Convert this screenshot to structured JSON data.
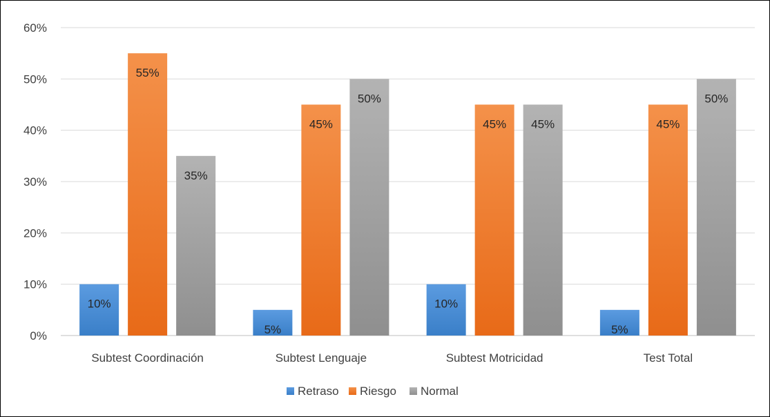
{
  "chart_data": {
    "type": "bar",
    "categories": [
      "Subtest Coordinación",
      "Subtest Lenguaje",
      "Subtest Motricidad",
      "Test Total"
    ],
    "series": [
      {
        "name": "Retraso",
        "values": [
          10,
          5,
          10,
          5
        ],
        "labels": [
          "10%",
          "5%",
          "10%",
          "5%"
        ],
        "color": "#4a8fd6"
      },
      {
        "name": "Riesgo",
        "values": [
          55,
          45,
          45,
          45
        ],
        "labels": [
          "55%",
          "45%",
          "45%",
          "45%"
        ],
        "color": "#f07a2a"
      },
      {
        "name": "Normal",
        "values": [
          35,
          50,
          45,
          50
        ],
        "labels": [
          "35%",
          "50%",
          "45%",
          "50%"
        ],
        "color": "#a3a3a3"
      }
    ],
    "ylim": [
      0,
      60
    ],
    "yticks": [
      "0%",
      "10%",
      "20%",
      "30%",
      "40%",
      "50%",
      "60%"
    ],
    "grid": true,
    "legend": "bottom-center",
    "title": "",
    "xlabel": "",
    "ylabel": ""
  }
}
